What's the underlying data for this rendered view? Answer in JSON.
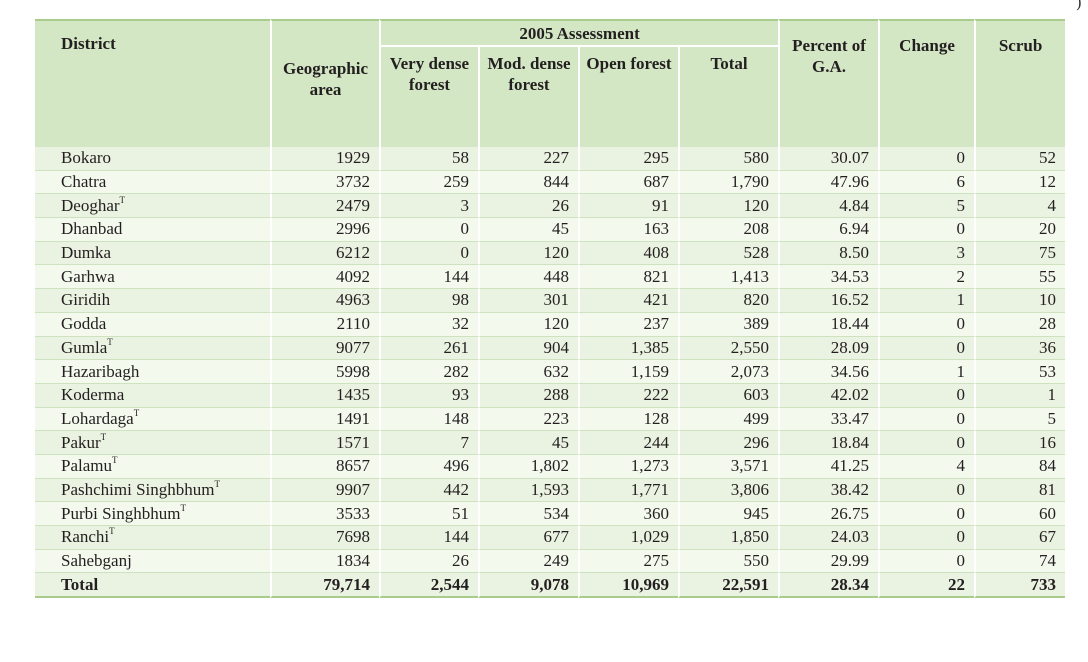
{
  "headers": {
    "district": "District",
    "geographic": "Geographic area",
    "assessment": "2005 Assessment",
    "very_dense": "Very dense forest",
    "mod_dense": "Mod. dense forest",
    "open": "Open forest",
    "total": "Total",
    "percent": "Percent of G.A.",
    "change": "Change",
    "scrub": "Scrub"
  },
  "corner_text": ")",
  "rows": [
    {
      "district": "Bokaro",
      "mark": "",
      "geo": "1929",
      "vd": "58",
      "md": "227",
      "open": "295",
      "total": "580",
      "pct": "30.07",
      "change": "0",
      "scrub": "52"
    },
    {
      "district": "Chatra",
      "mark": "",
      "geo": "3732",
      "vd": "259",
      "md": "844",
      "open": "687",
      "total": "1,790",
      "pct": "47.96",
      "change": "6",
      "scrub": "12"
    },
    {
      "district": "Deoghar",
      "mark": "T",
      "geo": "2479",
      "vd": "3",
      "md": "26",
      "open": "91",
      "total": "120",
      "pct": "4.84",
      "change": "5",
      "scrub": "4"
    },
    {
      "district": "Dhanbad",
      "mark": "",
      "geo": "2996",
      "vd": "0",
      "md": "45",
      "open": "163",
      "total": "208",
      "pct": "6.94",
      "change": "0",
      "scrub": "20"
    },
    {
      "district": "Dumka",
      "mark": "",
      "geo": "6212",
      "vd": "0",
      "md": "120",
      "open": "408",
      "total": "528",
      "pct": "8.50",
      "change": "3",
      "scrub": "75"
    },
    {
      "district": "Garhwa",
      "mark": "",
      "geo": "4092",
      "vd": "144",
      "md": "448",
      "open": "821",
      "total": "1,413",
      "pct": "34.53",
      "change": "2",
      "scrub": "55"
    },
    {
      "district": "Giridih",
      "mark": "",
      "geo": "4963",
      "vd": "98",
      "md": "301",
      "open": "421",
      "total": "820",
      "pct": "16.52",
      "change": "1",
      "scrub": "10"
    },
    {
      "district": "Godda",
      "mark": "",
      "geo": "2110",
      "vd": "32",
      "md": "120",
      "open": "237",
      "total": "389",
      "pct": "18.44",
      "change": "0",
      "scrub": "28"
    },
    {
      "district": "Gumla",
      "mark": "T",
      "geo": "9077",
      "vd": "261",
      "md": "904",
      "open": "1,385",
      "total": "2,550",
      "pct": "28.09",
      "change": "0",
      "scrub": "36"
    },
    {
      "district": "Hazaribagh",
      "mark": "",
      "geo": "5998",
      "vd": "282",
      "md": "632",
      "open": "1,159",
      "total": "2,073",
      "pct": "34.56",
      "change": "1",
      "scrub": "53"
    },
    {
      "district": "Koderma",
      "mark": "",
      "geo": "1435",
      "vd": "93",
      "md": "288",
      "open": "222",
      "total": "603",
      "pct": "42.02",
      "change": "0",
      "scrub": "1"
    },
    {
      "district": "Lohardaga",
      "mark": "T",
      "geo": "1491",
      "vd": "148",
      "md": "223",
      "open": "128",
      "total": "499",
      "pct": "33.47",
      "change": "0",
      "scrub": "5"
    },
    {
      "district": "Pakur",
      "mark": "T",
      "geo": "1571",
      "vd": "7",
      "md": "45",
      "open": "244",
      "total": "296",
      "pct": "18.84",
      "change": "0",
      "scrub": "16"
    },
    {
      "district": "Palamu",
      "mark": "T",
      "geo": "8657",
      "vd": "496",
      "md": "1,802",
      "open": "1,273",
      "total": "3,571",
      "pct": "41.25",
      "change": "4",
      "scrub": "84"
    },
    {
      "district": "Pashchimi Singhbhum",
      "mark": "T",
      "geo": "9907",
      "vd": "442",
      "md": "1,593",
      "open": "1,771",
      "total": "3,806",
      "pct": "38.42",
      "change": "0",
      "scrub": "81"
    },
    {
      "district": "Purbi Singhbhum",
      "mark": "T",
      "geo": "3533",
      "vd": "51",
      "md": "534",
      "open": "360",
      "total": "945",
      "pct": "26.75",
      "change": "0",
      "scrub": "60"
    },
    {
      "district": "Ranchi",
      "mark": "T",
      "geo": "7698",
      "vd": "144",
      "md": "677",
      "open": "1,029",
      "total": "1,850",
      "pct": "24.03",
      "change": "0",
      "scrub": "67"
    },
    {
      "district": "Sahebganj",
      "mark": "",
      "geo": "1834",
      "vd": "26",
      "md": "249",
      "open": "275",
      "total": "550",
      "pct": "29.99",
      "change": "0",
      "scrub": "74"
    }
  ],
  "total_row": {
    "district": "Total",
    "geo": "79,714",
    "vd": "2,544",
    "md": "9,078",
    "open": "10,969",
    "total": "22,591",
    "pct": "28.34",
    "change": "22",
    "scrub": "733"
  }
}
